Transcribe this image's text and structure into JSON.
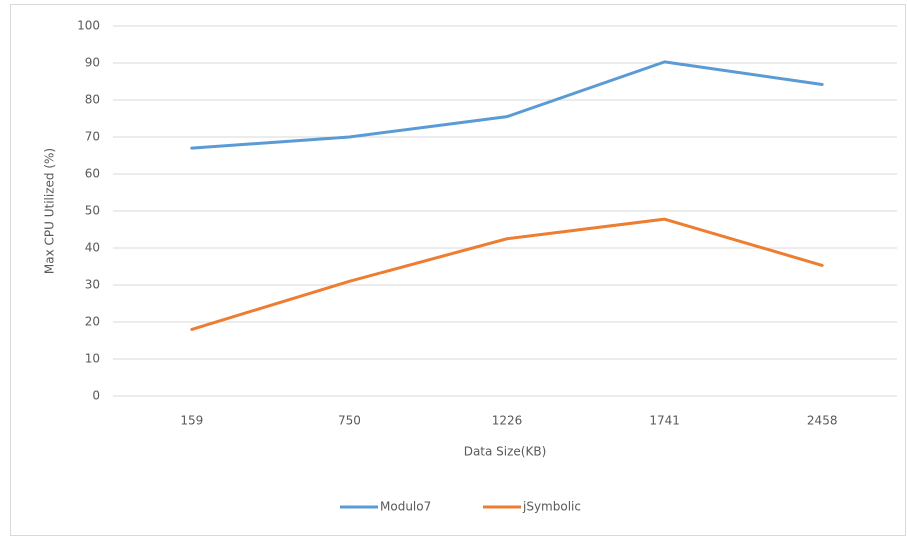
{
  "chart_data": {
    "type": "line",
    "x_label": "Data Size(KB)",
    "y_label": "Max CPU Utilized (%)",
    "categories": [
      "159",
      "750",
      "1226",
      "1741",
      "2458"
    ],
    "series": [
      {
        "name": "Modulo7",
        "color": "#5b9bd5",
        "values": [
          67,
          70,
          75.5,
          90.3,
          84.2
        ]
      },
      {
        "name": "jSymbolic",
        "color": "#ed7d31",
        "values": [
          18,
          31,
          42.5,
          47.8,
          35.3
        ]
      }
    ],
    "ylim": [
      0,
      100
    ],
    "yticks": [
      0,
      10,
      20,
      30,
      40,
      50,
      60,
      70,
      80,
      90,
      100
    ],
    "grid": true,
    "legend": "bottom"
  }
}
